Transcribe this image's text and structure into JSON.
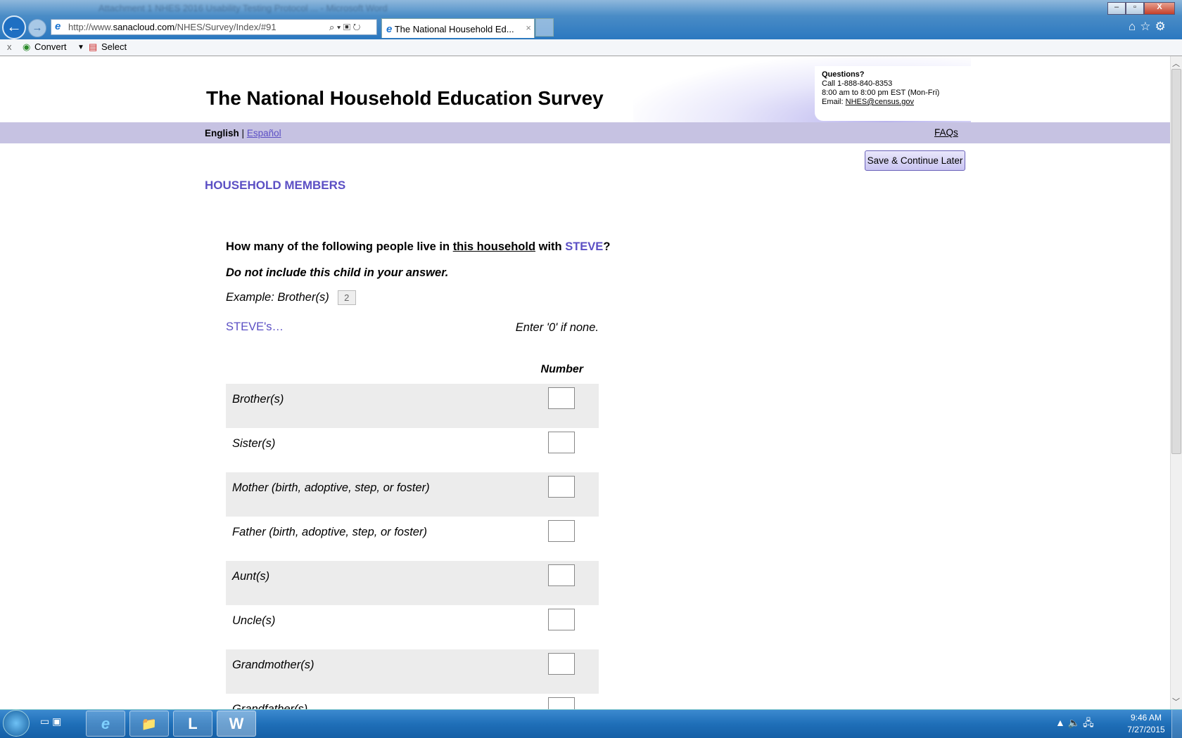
{
  "browser": {
    "window_title": "Attachment 1 NHES 2016 Usability Testing Protocol ... - Microsoft Word",
    "url_prefix": "http://www.",
    "url_domain": "sanacloud.com",
    "url_path": "/NHES/Survey/Index/#91",
    "tab_title": "The National Household Ed...",
    "tab_close": "×",
    "back_icon": "←",
    "forward_icon": "→",
    "cmdbar": {
      "close": "x",
      "convert": "Convert",
      "dropdown": "▼",
      "select": "Select"
    },
    "window_controls": {
      "minimize": "–",
      "maximize": "▫",
      "close": "X"
    },
    "right_icons": "⌂☆⚙"
  },
  "header": {
    "title": "The National Household Education Survey",
    "questions": {
      "heading": "Questions?",
      "phone": "Call 1-888-840-8353",
      "hours": "8:00 am to 8:00 pm EST (Mon-Fri)",
      "email_label": "Email:",
      "email": "NHES@census.gov"
    }
  },
  "nav": {
    "english": "English",
    "separator": "|",
    "espanol": "Español",
    "faqs": "FAQs"
  },
  "save_button": "Save & Continue Later",
  "section_title": "HOUSEHOLD MEMBERS",
  "question": {
    "part1": "How many of the following people live in ",
    "underlined": "this household",
    "part2": " with ",
    "name": "STEVE",
    "part3": "?"
  },
  "note": "Do not include this child in your answer.",
  "example": {
    "label": "Example: Brother(s)",
    "value": "2"
  },
  "steves": "STEVE's…",
  "enter_none": "Enter '0' if none.",
  "column_header": "Number",
  "rows": [
    {
      "label": "Brother(s)",
      "value": ""
    },
    {
      "label": "Sister(s)",
      "value": ""
    },
    {
      "label": "Mother (birth, adoptive, step, or foster)",
      "value": ""
    },
    {
      "label": "Father (birth, adoptive, step, or foster)",
      "value": ""
    },
    {
      "label": "Aunt(s)",
      "value": ""
    },
    {
      "label": "Uncle(s)",
      "value": ""
    },
    {
      "label": "Grandmother(s)",
      "value": ""
    },
    {
      "label": "Grandfather(s)",
      "value": ""
    }
  ],
  "taskbar": {
    "apps": [
      "e",
      "📁",
      "L",
      "W"
    ],
    "tray": "▲  🔈  🖧",
    "time": "9:46 AM",
    "date": "7/27/2015"
  },
  "colors": {
    "accent": "#5b4fc4",
    "nav_bar": "#c6c2e2",
    "row_alt": "#ececec"
  }
}
